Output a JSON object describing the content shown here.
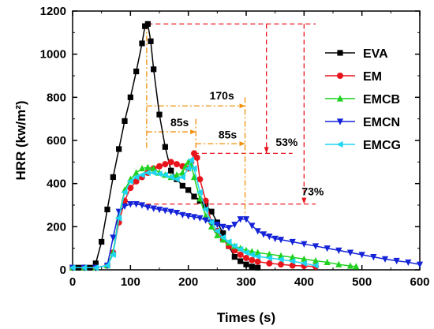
{
  "chart_data": {
    "type": "line",
    "title": "",
    "xlabel": "Times (s)",
    "ylabel": "HRR (kw/m²)",
    "xlim": [
      0,
      600
    ],
    "ylim": [
      0,
      1200
    ],
    "x_ticks": [
      "0",
      "100",
      "200",
      "300",
      "400",
      "500",
      "600"
    ],
    "y_ticks": [
      "0",
      "200",
      "400",
      "600",
      "800",
      "1000",
      "1200"
    ],
    "grid": false,
    "legend_position": "right",
    "series": [
      {
        "name": "EVA",
        "color": "#000000",
        "marker": "square",
        "points": [
          [
            0,
            10
          ],
          [
            10,
            10
          ],
          [
            20,
            10
          ],
          [
            30,
            10
          ],
          [
            40,
            30
          ],
          [
            50,
            130
          ],
          [
            60,
            280
          ],
          [
            70,
            430
          ],
          [
            80,
            560
          ],
          [
            90,
            690
          ],
          [
            100,
            800
          ],
          [
            110,
            920
          ],
          [
            120,
            1050
          ],
          [
            125,
            1130
          ],
          [
            130,
            1140
          ],
          [
            135,
            1060
          ],
          [
            140,
            930
          ],
          [
            150,
            720
          ],
          [
            160,
            570
          ],
          [
            170,
            460
          ],
          [
            180,
            420
          ],
          [
            190,
            390
          ],
          [
            200,
            370
          ],
          [
            210,
            340
          ],
          [
            220,
            320
          ],
          [
            230,
            300
          ],
          [
            240,
            270
          ],
          [
            250,
            220
          ],
          [
            260,
            170
          ],
          [
            270,
            110
          ],
          [
            280,
            60
          ],
          [
            290,
            40
          ],
          [
            300,
            25
          ],
          [
            310,
            15
          ],
          [
            320,
            10
          ]
        ]
      },
      {
        "name": "EM",
        "color": "#e8141c",
        "marker": "circle",
        "points": [
          [
            0,
            10
          ],
          [
            20,
            10
          ],
          [
            40,
            10
          ],
          [
            60,
            20
          ],
          [
            70,
            80
          ],
          [
            80,
            220
          ],
          [
            90,
            320
          ],
          [
            100,
            380
          ],
          [
            110,
            410
          ],
          [
            120,
            430
          ],
          [
            130,
            450
          ],
          [
            140,
            470
          ],
          [
            150,
            480
          ],
          [
            160,
            490
          ],
          [
            170,
            500
          ],
          [
            180,
            490
          ],
          [
            190,
            480
          ],
          [
            200,
            470
          ],
          [
            205,
            500
          ],
          [
            210,
            540
          ],
          [
            215,
            520
          ],
          [
            220,
            420
          ],
          [
            230,
            320
          ],
          [
            240,
            220
          ],
          [
            250,
            180
          ],
          [
            260,
            140
          ],
          [
            270,
            110
          ],
          [
            280,
            90
          ],
          [
            290,
            70
          ],
          [
            300,
            55
          ],
          [
            310,
            45
          ],
          [
            320,
            38
          ],
          [
            340,
            30
          ],
          [
            360,
            25
          ],
          [
            380,
            20
          ],
          [
            400,
            18
          ],
          [
            420,
            15
          ]
        ]
      },
      {
        "name": "EMCB",
        "color": "#1fd21f",
        "marker": "triangle-up",
        "points": [
          [
            0,
            10
          ],
          [
            20,
            10
          ],
          [
            40,
            10
          ],
          [
            60,
            20
          ],
          [
            70,
            80
          ],
          [
            80,
            250
          ],
          [
            90,
            370
          ],
          [
            100,
            420
          ],
          [
            110,
            450
          ],
          [
            120,
            470
          ],
          [
            130,
            475
          ],
          [
            140,
            470
          ],
          [
            150,
            450
          ],
          [
            160,
            440
          ],
          [
            170,
            430
          ],
          [
            180,
            440
          ],
          [
            190,
            450
          ],
          [
            195,
            480
          ],
          [
            200,
            500
          ],
          [
            205,
            490
          ],
          [
            210,
            430
          ],
          [
            220,
            330
          ],
          [
            230,
            250
          ],
          [
            240,
            200
          ],
          [
            250,
            160
          ],
          [
            260,
            140
          ],
          [
            270,
            125
          ],
          [
            280,
            110
          ],
          [
            290,
            100
          ],
          [
            300,
            90
          ],
          [
            310,
            85
          ],
          [
            320,
            80
          ],
          [
            340,
            72
          ],
          [
            360,
            65
          ],
          [
            380,
            58
          ],
          [
            400,
            50
          ],
          [
            420,
            42
          ],
          [
            440,
            35
          ],
          [
            460,
            25
          ],
          [
            480,
            18
          ],
          [
            490,
            15
          ]
        ]
      },
      {
        "name": "EMCN",
        "color": "#1423d8",
        "marker": "triangle-down",
        "points": [
          [
            0,
            10
          ],
          [
            20,
            10
          ],
          [
            40,
            10
          ],
          [
            60,
            20
          ],
          [
            70,
            150
          ],
          [
            80,
            270
          ],
          [
            90,
            295
          ],
          [
            100,
            305
          ],
          [
            110,
            305
          ],
          [
            120,
            300
          ],
          [
            130,
            290
          ],
          [
            140,
            285
          ],
          [
            150,
            280
          ],
          [
            160,
            275
          ],
          [
            170,
            270
          ],
          [
            180,
            265
          ],
          [
            190,
            255
          ],
          [
            200,
            250
          ],
          [
            210,
            245
          ],
          [
            220,
            240
          ],
          [
            230,
            230
          ],
          [
            240,
            220
          ],
          [
            250,
            210
          ],
          [
            260,
            200
          ],
          [
            270,
            195
          ],
          [
            280,
            210
          ],
          [
            290,
            235
          ],
          [
            300,
            235
          ],
          [
            310,
            205
          ],
          [
            320,
            180
          ],
          [
            330,
            165
          ],
          [
            340,
            155
          ],
          [
            350,
            145
          ],
          [
            360,
            140
          ],
          [
            380,
            130
          ],
          [
            400,
            120
          ],
          [
            420,
            110
          ],
          [
            440,
            100
          ],
          [
            460,
            90
          ],
          [
            480,
            80
          ],
          [
            500,
            70
          ],
          [
            520,
            60
          ],
          [
            540,
            50
          ],
          [
            560,
            42
          ],
          [
            580,
            35
          ],
          [
            600,
            25
          ]
        ]
      },
      {
        "name": "EMCG",
        "color": "#1fd6f2",
        "marker": "triangle-left",
        "points": [
          [
            0,
            10
          ],
          [
            20,
            10
          ],
          [
            40,
            10
          ],
          [
            60,
            20
          ],
          [
            70,
            70
          ],
          [
            80,
            240
          ],
          [
            90,
            360
          ],
          [
            100,
            410
          ],
          [
            110,
            430
          ],
          [
            120,
            440
          ],
          [
            130,
            450
          ],
          [
            140,
            450
          ],
          [
            150,
            445
          ],
          [
            160,
            440
          ],
          [
            170,
            430
          ],
          [
            180,
            420
          ],
          [
            190,
            430
          ],
          [
            200,
            470
          ],
          [
            205,
            510
          ],
          [
            210,
            470
          ],
          [
            220,
            360
          ],
          [
            230,
            280
          ],
          [
            240,
            220
          ],
          [
            250,
            180
          ],
          [
            260,
            150
          ],
          [
            270,
            130
          ],
          [
            280,
            110
          ],
          [
            290,
            95
          ],
          [
            300,
            80
          ],
          [
            310,
            70
          ],
          [
            320,
            62
          ],
          [
            340,
            55
          ],
          [
            360,
            48
          ],
          [
            380,
            40
          ],
          [
            400,
            30
          ],
          [
            420,
            20
          ]
        ]
      }
    ],
    "annotations": [
      {
        "text": "170s"
      },
      {
        "text": "85s"
      },
      {
        "text": "85s"
      },
      {
        "text": "53%"
      },
      {
        "text": "73%"
      }
    ]
  }
}
